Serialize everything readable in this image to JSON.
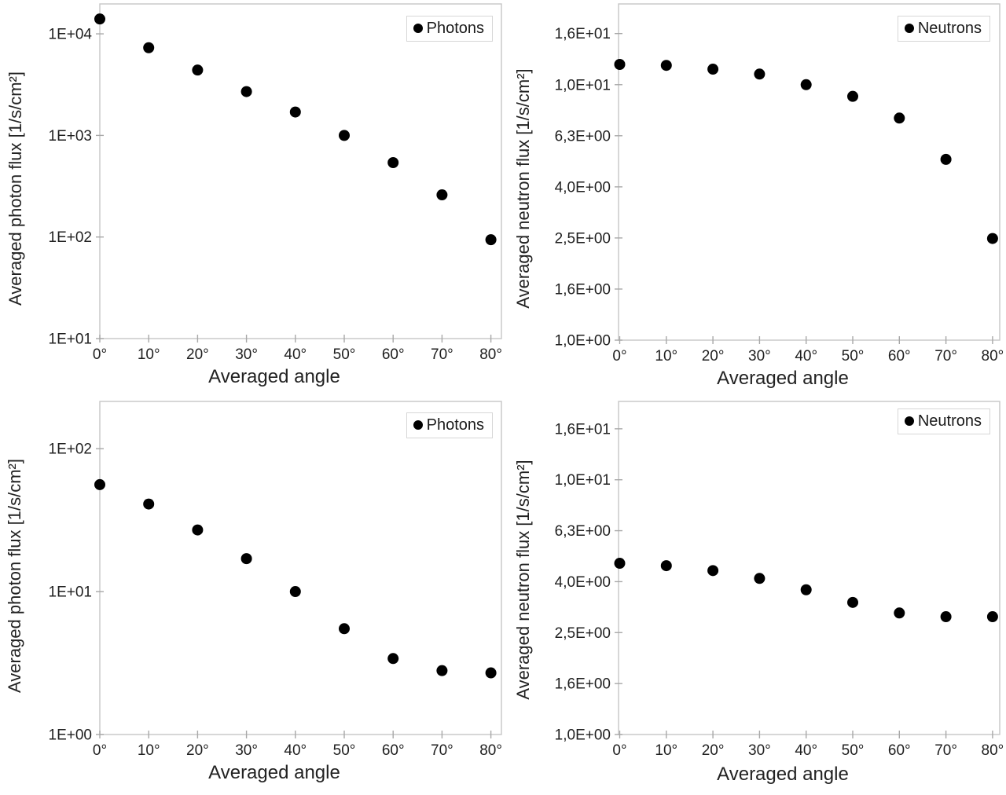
{
  "figure": {
    "background": "#ffffff",
    "text_color": "#1a1a1a",
    "border_color": "#c6c6c6",
    "tick_color": "#a8a8a8",
    "point_color": "#000000"
  },
  "chart_data": [
    {
      "type": "scatter",
      "panel": "top-left",
      "xlabel": "Averaged angle",
      "ylabel": "Averaged photon flux [1/s/cm²]",
      "yscale": "log",
      "ylim": [
        10,
        19700
      ],
      "grid": false,
      "legend_position": "top-right",
      "categories": [
        "0°",
        "10°",
        "20°",
        "30°",
        "40°",
        "50°",
        "60°",
        "70°",
        "80°"
      ],
      "x_values_deg": [
        0,
        10,
        20,
        30,
        40,
        50,
        60,
        70,
        80
      ],
      "yticks": [
        {
          "label": "1E+01",
          "value": 10
        },
        {
          "label": "1E+02",
          "value": 100
        },
        {
          "label": "1E+03",
          "value": 1000
        },
        {
          "label": "1E+04",
          "value": 10000
        }
      ],
      "series": [
        {
          "name": "Photons",
          "marker": "circle",
          "color": "#000000",
          "values": [
            14000,
            7300,
            4400,
            2700,
            1700,
            1000,
            540,
            260,
            94
          ]
        }
      ]
    },
    {
      "type": "scatter",
      "panel": "top-right",
      "xlabel": "Averaged angle",
      "ylabel": "Averaged neutron flux [1/s/cm²]",
      "yscale": "log",
      "ylim": [
        1,
        20.7
      ],
      "grid": false,
      "legend_position": "top-right",
      "categories": [
        "0°",
        "10°",
        "20°",
        "30°",
        "40°",
        "50°",
        "60°",
        "70°",
        "80°"
      ],
      "x_values_deg": [
        0,
        10,
        20,
        30,
        40,
        50,
        60,
        70,
        80
      ],
      "yticks": [
        {
          "label": "1,0E+00",
          "value": 1
        },
        {
          "label": "1,6E+00",
          "value": 1.585
        },
        {
          "label": "2,5E+00",
          "value": 2.512
        },
        {
          "label": "4,0E+00",
          "value": 3.981
        },
        {
          "label": "6,3E+00",
          "value": 6.31
        },
        {
          "label": "1,0E+01",
          "value": 10
        },
        {
          "label": "1,6E+01",
          "value": 15.85
        }
      ],
      "series": [
        {
          "name": "Neutrons",
          "marker": "circle",
          "color": "#000000",
          "values": [
            12.0,
            11.9,
            11.5,
            11.0,
            10.0,
            9.0,
            7.4,
            5.1,
            2.5
          ]
        }
      ]
    },
    {
      "type": "scatter",
      "panel": "bottom-left",
      "xlabel": "Averaged angle",
      "ylabel": "Averaged photon flux [1/s/cm²]",
      "yscale": "log",
      "ylim": [
        1,
        214
      ],
      "grid": false,
      "legend_position": "top-right",
      "categories": [
        "0°",
        "10°",
        "20°",
        "30°",
        "40°",
        "50°",
        "60°",
        "70°",
        "80°"
      ],
      "x_values_deg": [
        0,
        10,
        20,
        30,
        40,
        50,
        60,
        70,
        80
      ],
      "yticks": [
        {
          "label": "1E+00",
          "value": 1
        },
        {
          "label": "1E+01",
          "value": 10
        },
        {
          "label": "1E+02",
          "value": 100
        }
      ],
      "series": [
        {
          "name": "Photons",
          "marker": "circle",
          "color": "#000000",
          "values": [
            56,
            41,
            27,
            17,
            10,
            5.5,
            3.4,
            2.8,
            2.7
          ]
        }
      ]
    },
    {
      "type": "scatter",
      "panel": "bottom-right",
      "xlabel": "Averaged angle",
      "ylabel": "Averaged neutron flux [1/s/cm²]",
      "yscale": "log",
      "ylim": [
        1,
        20.3
      ],
      "grid": false,
      "legend_position": "top-right",
      "categories": [
        "0°",
        "10°",
        "20°",
        "30°",
        "40°",
        "50°",
        "60°",
        "70°",
        "80°"
      ],
      "x_values_deg": [
        0,
        10,
        20,
        30,
        40,
        50,
        60,
        70,
        80
      ],
      "yticks": [
        {
          "label": "1,0E+00",
          "value": 1
        },
        {
          "label": "1,6E+00",
          "value": 1.585
        },
        {
          "label": "2,5E+00",
          "value": 2.512
        },
        {
          "label": "4,0E+00",
          "value": 3.981
        },
        {
          "label": "6,3E+00",
          "value": 6.31
        },
        {
          "label": "1,0E+01",
          "value": 10
        },
        {
          "label": "1,6E+01",
          "value": 15.85
        }
      ],
      "series": [
        {
          "name": "Neutrons",
          "marker": "circle",
          "color": "#000000",
          "values": [
            4.7,
            4.6,
            4.4,
            4.1,
            3.7,
            3.3,
            3.0,
            2.9,
            2.9
          ]
        }
      ]
    }
  ]
}
